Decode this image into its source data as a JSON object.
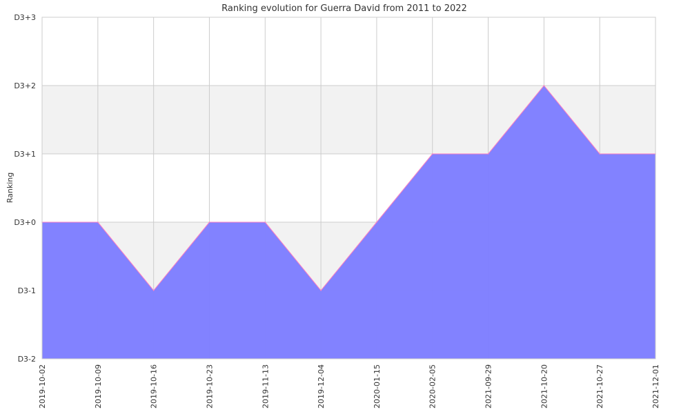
{
  "chart_data": {
    "type": "area",
    "title": "Ranking evolution for Guerra David from 2011 to 2022",
    "xlabel": "",
    "ylabel": "Ranking",
    "x": [
      "2019-10-02",
      "2019-10-09",
      "2019-10-16",
      "2019-10-23",
      "2019-11-13",
      "2019-12-04",
      "2020-01-15",
      "2020-02-05",
      "2021-09-29",
      "2021-10-20",
      "2021-10-27",
      "2021-12-01"
    ],
    "y_tick_labels": [
      "D3-2",
      "D3-1",
      "D3+0",
      "D3+1",
      "D3+2",
      "D3+3"
    ],
    "ylim": [
      -2,
      3
    ],
    "series": [
      {
        "values": [
          0,
          0,
          -1,
          0,
          0,
          -1,
          0,
          1,
          1,
          2,
          1,
          1
        ]
      }
    ],
    "grid": true,
    "x_tick_rotation": "vertical",
    "colors": {
      "fill": "#8080ff",
      "line": "#ff80c0",
      "band": "#f2f2f2",
      "grid": "#cccccc",
      "axis": "#cccccc"
    }
  }
}
